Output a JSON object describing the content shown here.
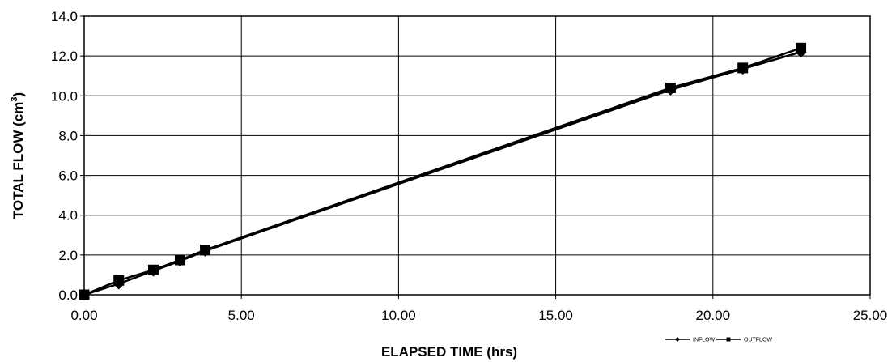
{
  "chart_data": {
    "type": "line",
    "xlabel": "ELAPSED TIME (hrs)",
    "ylabel_main": "TOTAL FLOW (cm",
    "ylabel_sup": "3",
    "ylabel_close": ")",
    "xlim": [
      0,
      25
    ],
    "ylim": [
      0,
      14
    ],
    "x_ticks": [
      "0.00",
      "5.00",
      "10.00",
      "15.00",
      "20.00",
      "25.00"
    ],
    "y_ticks": [
      "0.0",
      "2.0",
      "4.0",
      "6.0",
      "8.0",
      "10.0",
      "12.0",
      "14.0"
    ],
    "grid": true,
    "legend_position": "bottom-right",
    "series": [
      {
        "name": "INFLOW",
        "marker": "diamond",
        "color": "#000000",
        "x": [
          0.0,
          1.1,
          2.2,
          3.05,
          3.85,
          18.65,
          20.95,
          22.8
        ],
        "y": [
          0.0,
          0.55,
          1.2,
          1.7,
          2.2,
          10.3,
          11.35,
          12.2
        ]
      },
      {
        "name": "OUTFLOW",
        "marker": "square",
        "color": "#000000",
        "x": [
          0.0,
          1.1,
          2.2,
          3.05,
          3.85,
          18.65,
          20.95,
          22.8
        ],
        "y": [
          0.0,
          0.72,
          1.25,
          1.75,
          2.25,
          10.4,
          11.4,
          12.4
        ]
      }
    ]
  }
}
